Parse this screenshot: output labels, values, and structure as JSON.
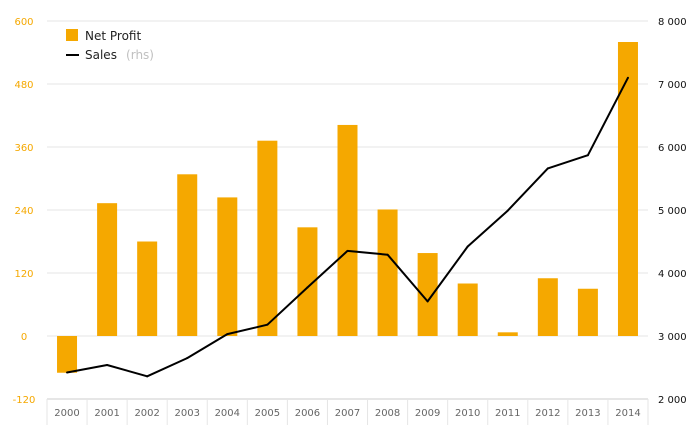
{
  "chart_data": {
    "type": "bar",
    "categories": [
      "2000",
      "2001",
      "2002",
      "2003",
      "2004",
      "2005",
      "2006",
      "2007",
      "2008",
      "2009",
      "2010",
      "2011",
      "2012",
      "2013",
      "2014"
    ],
    "series": [
      {
        "name": "Net Profit",
        "type": "bar",
        "axis": "left",
        "color": "#f5a800",
        "values": [
          -70,
          253,
          180,
          308,
          264,
          372,
          207,
          402,
          241,
          158,
          100,
          7,
          110,
          90,
          560
        ]
      },
      {
        "name": "Sales",
        "name_suffix": "(rhs)",
        "type": "line",
        "axis": "right",
        "color": "#000000",
        "values": [
          2420,
          2540,
          2360,
          2650,
          3030,
          3180,
          3770,
          4350,
          4290,
          3550,
          4420,
          4990,
          5660,
          5870,
          7100
        ]
      }
    ],
    "y_left": {
      "lim": [
        -120,
        600
      ],
      "ticks": [
        -120,
        0,
        120,
        240,
        360,
        480,
        600
      ],
      "tick_labels": [
        "-120",
        "0",
        "120",
        "240",
        "360",
        "480",
        "600"
      ]
    },
    "y_right": {
      "lim": [
        2000,
        8000
      ],
      "ticks": [
        2000,
        3000,
        4000,
        5000,
        6000,
        7000,
        8000
      ],
      "tick_labels": [
        "2 000",
        "3 000",
        "4 000",
        "5 000",
        "6 000",
        "7 000",
        "8 000"
      ]
    },
    "grid": true,
    "legend": {
      "position": "top-left"
    }
  }
}
